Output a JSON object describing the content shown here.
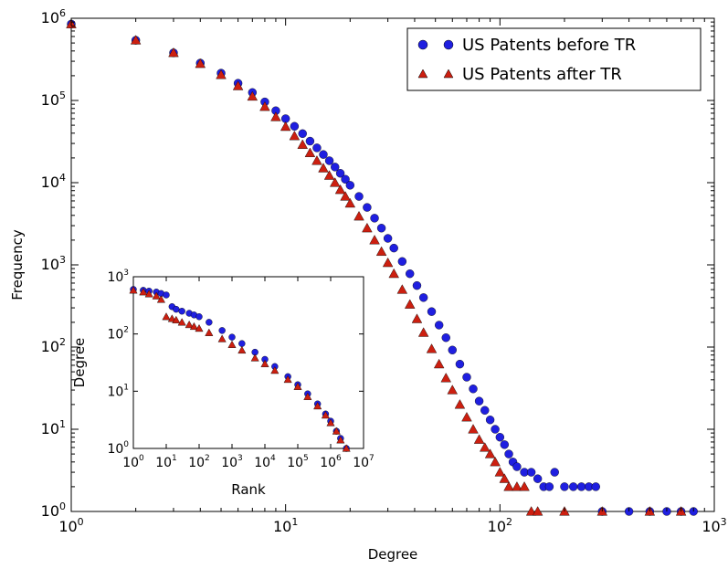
{
  "chart_data": [
    {
      "type": "scatter",
      "title": "",
      "xlabel": "Degree",
      "ylabel": "Frequency",
      "xscale": "log",
      "yscale": "log",
      "xlim": [
        1,
        1000
      ],
      "ylim": [
        1,
        1000000
      ],
      "xtick_labels": [
        "10^0",
        "10^1",
        "10^2",
        "10^3"
      ],
      "ytick_labels": [
        "10^0",
        "10^1",
        "10^2",
        "10^3",
        "10^4",
        "10^5",
        "10^6"
      ],
      "grid": false,
      "legend_position": "top-right",
      "series": [
        {
          "name": "US Patents before TR",
          "marker": "circle",
          "color": "#1f1fe0",
          "x": [
            1,
            2,
            3,
            4,
            5,
            6,
            7,
            8,
            9,
            10,
            11,
            12,
            13,
            14,
            15,
            16,
            17,
            18,
            19,
            20,
            22,
            24,
            26,
            28,
            30,
            32,
            35,
            38,
            41,
            44,
            48,
            52,
            56,
            60,
            65,
            70,
            75,
            80,
            85,
            90,
            95,
            100,
            105,
            110,
            115,
            120,
            130,
            140,
            150,
            160,
            170,
            180,
            200,
            220,
            240,
            260,
            280,
            300,
            400,
            500,
            600,
            700,
            800
          ],
          "y": [
            850000,
            540000,
            380000,
            285000,
            215000,
            162000,
            125000,
            96000,
            75000,
            60000,
            48500,
            39500,
            32000,
            26500,
            22000,
            18500,
            15500,
            13000,
            11000,
            9300,
            6800,
            5000,
            3700,
            2800,
            2100,
            1600,
            1100,
            780,
            560,
            400,
            270,
            185,
            130,
            92,
            62,
            43,
            31,
            22,
            17,
            13,
            10,
            8,
            6.5,
            5,
            4,
            3.5,
            3,
            3,
            2.5,
            2,
            2,
            3,
            2,
            2,
            2,
            2,
            2,
            1,
            1,
            1,
            1,
            1,
            1
          ]
        },
        {
          "name": "US Patents after TR",
          "marker": "triangle",
          "color": "#cc1f10",
          "x": [
            1,
            2,
            3,
            4,
            5,
            6,
            7,
            8,
            9,
            10,
            11,
            12,
            13,
            14,
            15,
            16,
            17,
            18,
            19,
            20,
            22,
            24,
            26,
            28,
            30,
            32,
            35,
            38,
            41,
            44,
            48,
            52,
            56,
            60,
            65,
            70,
            75,
            80,
            85,
            90,
            95,
            100,
            105,
            110,
            120,
            130,
            140,
            150,
            200,
            300,
            500,
            700
          ],
          "y": [
            850000,
            540000,
            380000,
            280000,
            205000,
            150000,
            112000,
            84000,
            63000,
            48000,
            37000,
            29000,
            23000,
            18500,
            15000,
            12200,
            10000,
            8200,
            6800,
            5600,
            3900,
            2800,
            2000,
            1450,
            1060,
            780,
            500,
            330,
            220,
            150,
            95,
            62,
            42,
            30,
            20,
            14,
            10,
            7.5,
            6,
            5,
            4,
            3,
            2.5,
            2,
            2,
            2,
            1,
            1,
            1,
            1,
            1,
            1
          ]
        }
      ]
    },
    {
      "type": "scatter",
      "title": "",
      "xlabel": "Rank",
      "ylabel": "Degree",
      "xscale": "log",
      "yscale": "log",
      "xlim": [
        1,
        10000000
      ],
      "ylim": [
        1,
        1000
      ],
      "xtick_labels": [
        "10^0",
        "10^1",
        "10^2",
        "10^3",
        "10^4",
        "10^5",
        "10^6",
        "10^7"
      ],
      "ytick_labels": [
        "10^0",
        "10^1",
        "10^2",
        "10^3"
      ],
      "grid": false,
      "series": [
        {
          "marker": "circle",
          "color": "#1f1fe0",
          "x": [
            1,
            2,
            3,
            5,
            7,
            10,
            15,
            20,
            30,
            50,
            70,
            100,
            200,
            500,
            1000,
            2000,
            5000,
            10000,
            20000,
            50000,
            100000,
            200000,
            400000,
            700000,
            1000000,
            1500000,
            2000000,
            3000000
          ],
          "y": [
            600,
            580,
            560,
            540,
            510,
            480,
            300,
            270,
            250,
            230,
            215,
            200,
            160,
            115,
            88,
            68,
            48,
            36,
            27,
            18,
            13,
            9,
            6,
            4,
            3,
            2,
            1.5,
            1
          ]
        },
        {
          "marker": "triangle",
          "color": "#cc1f10",
          "x": [
            1,
            2,
            3,
            5,
            7,
            10,
            15,
            20,
            30,
            50,
            70,
            100,
            200,
            500,
            1000,
            2000,
            5000,
            10000,
            20000,
            50000,
            100000,
            200000,
            400000,
            700000,
            1000000,
            1500000,
            2000000,
            3000000
          ],
          "y": [
            580,
            540,
            500,
            460,
            400,
            200,
            185,
            175,
            160,
            145,
            135,
            125,
            105,
            82,
            65,
            52,
            38,
            30,
            23,
            16,
            12,
            8,
            5.5,
            3.8,
            2.8,
            2,
            1.4,
            1
          ]
        }
      ]
    }
  ]
}
